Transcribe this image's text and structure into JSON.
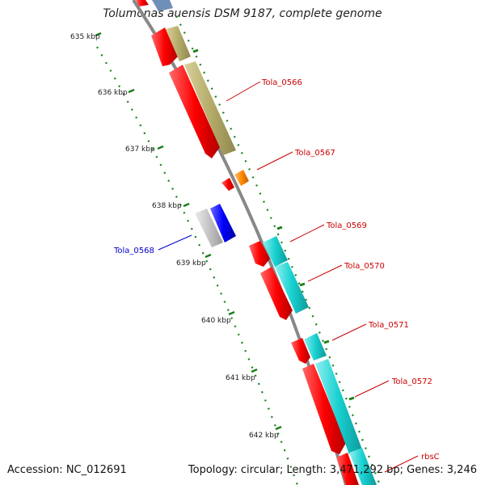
{
  "title": "Tolumonas auensis DSM 9187, complete genome",
  "accession_text": "Accession: NC_012691",
  "summary_text": "Topology: circular; Length: 3,471,292 bp; Genes: 3,246",
  "scale_ticks": [
    "635 kbp",
    "636 kbp",
    "637 kbp",
    "638 kbp",
    "639 kbp",
    "640 kbp",
    "641 kbp",
    "642 kbp"
  ],
  "gene_labels": [
    {
      "name": "Tola_0566",
      "color": "#cc0000"
    },
    {
      "name": "Tola_0567",
      "color": "#cc0000"
    },
    {
      "name": "Tola_0568",
      "color": "#0000cc"
    },
    {
      "name": "Tola_0569",
      "color": "#cc0000"
    },
    {
      "name": "Tola_0570",
      "color": "#cc0000"
    },
    {
      "name": "Tola_0571",
      "color": "#cc0000"
    },
    {
      "name": "Tola_0572",
      "color": "#cc0000"
    },
    {
      "name": "rbsC",
      "color": "#cc0000"
    }
  ],
  "colors": {
    "cds_red": "#ff0000",
    "cds_blue": "#0000ff",
    "cds_orange": "#ff8800",
    "olive": "#b5ac6a",
    "cyan": "#18d0d0",
    "gray": "#c0c0c0",
    "backbone": "#808080",
    "tick_green": "#1a7f1a"
  }
}
